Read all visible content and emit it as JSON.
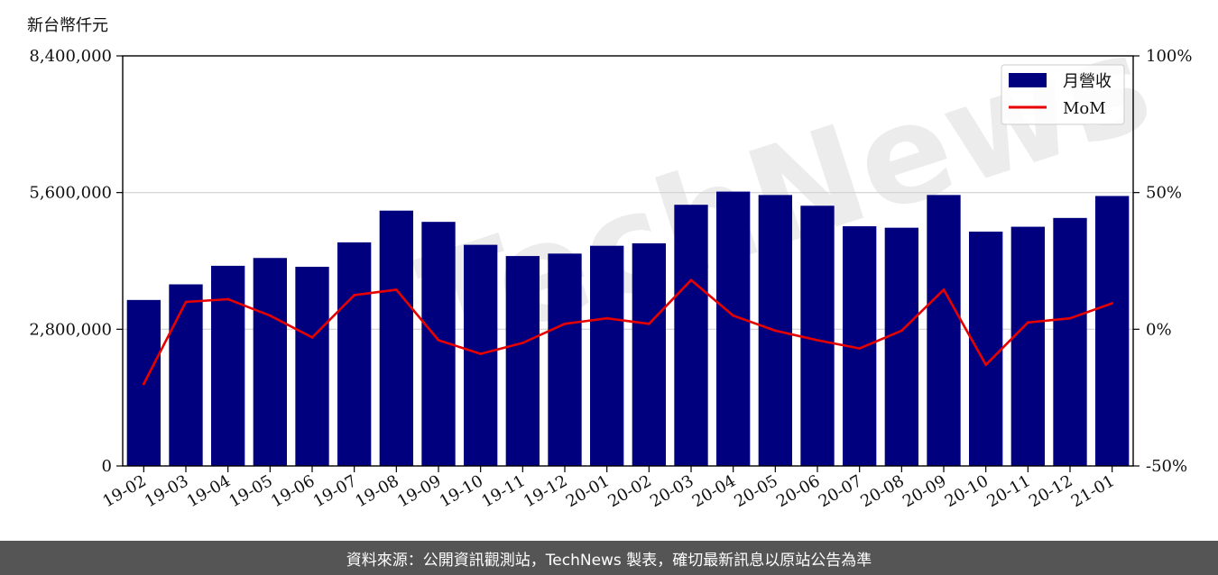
{
  "unit_label": "新台幣仟元",
  "footer_text": "資料來源：公開資訊觀測站，TechNews 製表，確切最新訊息以原站公告為準",
  "watermark": "TechNews",
  "colors": {
    "bar": "#00007f",
    "line": "#e60000",
    "footer_bg": "#555555"
  },
  "chart_data": {
    "type": "bar",
    "categories": [
      "19-02",
      "19-03",
      "19-04",
      "19-05",
      "19-06",
      "19-07",
      "19-08",
      "19-09",
      "19-10",
      "19-11",
      "19-12",
      "20-01",
      "20-02",
      "20-03",
      "20-04",
      "20-05",
      "20-06",
      "20-07",
      "20-08",
      "20-09",
      "20-10",
      "20-11",
      "20-12",
      "21-01"
    ],
    "series": [
      {
        "name": "月營收",
        "type": "bar",
        "axis": "left",
        "values": [
          3400000,
          3720000,
          4100000,
          4260000,
          4080000,
          4580000,
          5230000,
          5000000,
          4530000,
          4300000,
          4350000,
          4510000,
          4560000,
          5350000,
          5620000,
          5550000,
          5330000,
          4910000,
          4880000,
          5550000,
          4800000,
          4900000,
          5080000,
          5530000
        ]
      },
      {
        "name": "MoM",
        "type": "line",
        "axis": "right",
        "values": [
          -20.0,
          10.0,
          11.0,
          5.0,
          -3.0,
          12.5,
          14.5,
          -4.0,
          -9.0,
          -5.0,
          2.0,
          4.0,
          2.0,
          18.0,
          5.0,
          -0.5,
          -4.0,
          -7.0,
          -0.5,
          14.5,
          -13.0,
          2.5,
          4.0,
          9.5
        ]
      }
    ],
    "y_left": {
      "ylim": [
        0,
        8400000
      ],
      "ticks": [
        "0",
        "2,800,000",
        "5,600,000",
        "8,400,000"
      ],
      "tick_values": [
        0,
        2800000,
        5600000,
        8400000
      ]
    },
    "y_right": {
      "ylim": [
        -50,
        100
      ],
      "ticks": [
        "-50%",
        "0%",
        "50%",
        "100%"
      ],
      "tick_values": [
        -50,
        0,
        50,
        100
      ]
    },
    "grid": "horizontal",
    "legend_position": "top-right",
    "legend": [
      {
        "label": "月營收",
        "kind": "bar"
      },
      {
        "label": "MoM",
        "kind": "line"
      }
    ]
  }
}
